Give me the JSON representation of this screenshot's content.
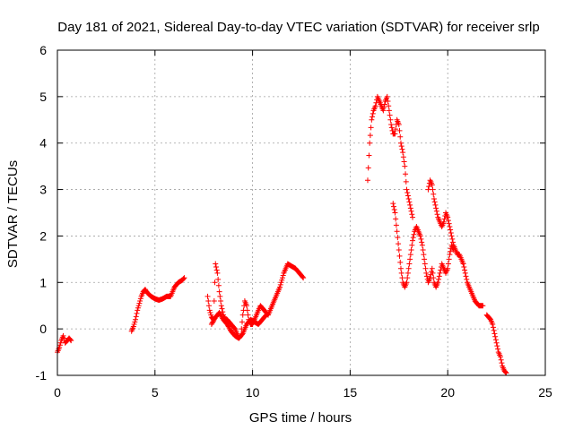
{
  "chart_data": {
    "type": "scatter",
    "title": "Day 181 of 2021, Sidereal Day-to-day VTEC variation (SDTVAR) for receiver srlp",
    "xlabel": "GPS time / hours",
    "ylabel": "SDTVAR / TECUs",
    "xlim": [
      0,
      25
    ],
    "ylim": [
      -1,
      6
    ],
    "x_ticks": [
      0,
      5,
      10,
      15,
      20,
      25
    ],
    "x_tick_labels": [
      "0",
      "5",
      "10",
      "15",
      "20",
      "25"
    ],
    "y_ticks": [
      -1,
      0,
      1,
      2,
      3,
      4,
      5,
      6
    ],
    "y_tick_labels": [
      "-1",
      "0",
      "1",
      "2",
      "3",
      "4",
      "5",
      "6"
    ],
    "grid": true,
    "marker": "+",
    "series": [
      {
        "name": "SDTVAR",
        "color": "#ff0000",
        "segments": [
          {
            "x": [
              0.0,
              0.1,
              0.2,
              0.3,
              0.35,
              0.4,
              0.5,
              0.6,
              0.7
            ],
            "y": [
              -0.5,
              -0.4,
              -0.25,
              -0.15,
              -0.2,
              -0.3,
              -0.25,
              -0.2,
              -0.25
            ]
          },
          {
            "x": [
              3.8,
              3.9,
              4.0,
              4.1,
              4.2,
              4.3,
              4.4,
              4.5,
              4.6,
              4.8,
              5.0,
              5.2,
              5.4,
              5.6,
              5.8,
              6.0,
              6.2,
              6.4,
              6.5
            ],
            "y": [
              -0.05,
              0.05,
              0.2,
              0.4,
              0.55,
              0.7,
              0.8,
              0.85,
              0.78,
              0.7,
              0.65,
              0.62,
              0.65,
              0.7,
              0.7,
              0.9,
              1.0,
              1.05,
              1.1
            ]
          },
          {
            "x": [
              7.7,
              7.8,
              7.9,
              8.0,
              8.1,
              8.2,
              8.3,
              8.4,
              8.5,
              8.6,
              8.7,
              8.8,
              8.9,
              9.0,
              9.1,
              9.2,
              9.3,
              9.4,
              9.5,
              9.6,
              9.7,
              9.8,
              9.9,
              10.0,
              10.2,
              10.4,
              10.6,
              10.8,
              11.0,
              11.2,
              11.4,
              11.6,
              11.8,
              12.0,
              12.2,
              12.4,
              12.6
            ],
            "y": [
              0.7,
              0.4,
              0.25,
              0.2,
              1.4,
              1.2,
              0.8,
              0.5,
              0.3,
              0.2,
              0.2,
              0.15,
              0.1,
              0.05,
              0.0,
              -0.1,
              -0.2,
              -0.15,
              0.3,
              0.6,
              0.5,
              0.2,
              0.1,
              0.1,
              0.3,
              0.5,
              0.4,
              0.3,
              0.5,
              0.7,
              0.9,
              1.2,
              1.4,
              1.35,
              1.3,
              1.2,
              1.1
            ]
          },
          {
            "x": [
              7.9,
              8.1,
              8.3,
              8.5,
              8.7,
              8.9,
              9.1,
              9.3,
              9.5,
              9.7,
              9.9,
              10.1,
              10.3,
              10.5,
              10.7
            ],
            "y": [
              0.1,
              0.25,
              0.35,
              0.2,
              0.1,
              -0.05,
              -0.15,
              -0.2,
              -0.1,
              0.1,
              0.2,
              0.15,
              0.1,
              0.2,
              0.3
            ]
          },
          {
            "x": [
              15.9,
              16.0,
              16.1,
              16.2,
              16.3,
              16.4,
              16.5,
              16.6,
              16.7,
              16.8,
              16.9,
              17.0,
              17.1,
              17.2,
              17.3,
              17.4,
              17.5,
              17.6,
              17.7,
              17.8,
              17.9,
              18.0,
              18.1,
              18.2
            ],
            "y": [
              3.2,
              4.0,
              4.5,
              4.7,
              4.8,
              5.0,
              4.9,
              4.8,
              4.7,
              4.9,
              5.0,
              4.7,
              4.4,
              4.2,
              4.2,
              4.5,
              4.4,
              4.0,
              3.8,
              3.5,
              3.0,
              2.8,
              2.6,
              2.4
            ]
          },
          {
            "x": [
              17.2,
              17.3,
              17.4,
              17.5,
              17.6,
              17.7,
              17.8,
              17.9,
              18.0,
              18.1,
              18.2,
              18.3,
              18.4,
              18.5,
              18.6,
              18.7,
              18.8,
              18.9,
              19.0,
              19.1,
              19.2,
              19.3,
              19.4,
              19.5,
              19.6,
              19.7,
              19.8,
              19.9,
              20.0,
              20.1,
              20.2,
              20.3
            ],
            "y": [
              2.7,
              2.5,
              2.1,
              1.7,
              1.3,
              1.0,
              0.9,
              1.0,
              1.3,
              1.6,
              1.9,
              2.1,
              2.2,
              2.1,
              2.0,
              1.8,
              1.5,
              1.2,
              1.0,
              1.1,
              1.3,
              1.0,
              0.9,
              1.0,
              1.2,
              1.4,
              1.3,
              1.2,
              1.3,
              1.6,
              1.8,
              1.7
            ]
          },
          {
            "x": [
              19.0,
              19.1,
              19.2,
              19.3,
              19.4,
              19.5,
              19.6,
              19.7,
              19.8,
              19.9,
              20.0,
              20.1,
              20.2,
              20.3,
              20.4,
              20.5,
              20.6,
              20.7,
              20.8,
              20.9,
              21.0,
              21.2,
              21.4,
              21.6,
              21.8
            ],
            "y": [
              3.0,
              3.2,
              3.1,
              2.8,
              2.6,
              2.4,
              2.3,
              2.2,
              2.3,
              2.5,
              2.4,
              2.2,
              2.0,
              1.8,
              1.7,
              1.6,
              1.6,
              1.5,
              1.4,
              1.2,
              1.0,
              0.8,
              0.6,
              0.5,
              0.5
            ]
          },
          {
            "x": [
              22.0,
              22.1,
              22.2,
              22.3,
              22.4,
              22.5,
              22.6,
              22.7,
              22.8,
              22.9,
              23.0
            ],
            "y": [
              0.3,
              0.25,
              0.2,
              0.1,
              -0.1,
              -0.3,
              -0.5,
              -0.6,
              -0.8,
              -0.9,
              -0.95
            ]
          }
        ]
      }
    ]
  }
}
